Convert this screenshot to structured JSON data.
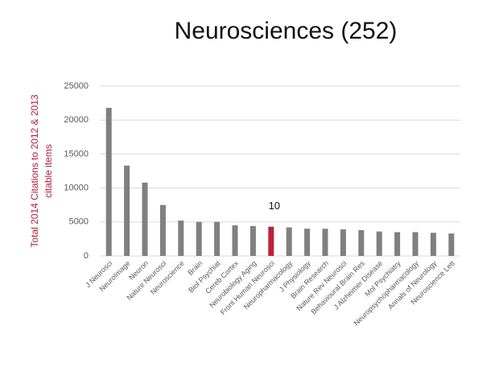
{
  "chart_data": {
    "type": "bar",
    "title": "Neurosciences (252)",
    "ylabel": [
      "Total 2014 Citations to 2012 & 2013",
      "citable items"
    ],
    "categories": [
      "J Neurosci",
      "NeuroImage",
      "Neuron",
      "Nature Neurosci",
      "Neuroscience",
      "Brain",
      "Biol Psychiat",
      "Cereb Cortex",
      "Neurobiology Aging",
      "Front Human Neurosci",
      "Neuropharmacology",
      "J Physiology",
      "Brain Research",
      "Nature Rev Neurosci",
      "Behavioural Brain Res",
      "J Alzheimer Disease",
      "Mol Psychiatry",
      "Neuropsychopharmacology",
      "Annals of Neurology",
      "Neuroscience Lett"
    ],
    "values": [
      21800,
      13300,
      10800,
      7500,
      5200,
      5000,
      5000,
      4500,
      4400,
      4300,
      4200,
      4000,
      4000,
      3900,
      3800,
      3600,
      3500,
      3500,
      3400,
      3300
    ],
    "colors": [
      "#808080",
      "#808080",
      "#808080",
      "#808080",
      "#808080",
      "#808080",
      "#808080",
      "#808080",
      "#808080",
      "#c0203a",
      "#808080",
      "#808080",
      "#808080",
      "#808080",
      "#808080",
      "#808080",
      "#808080",
      "#808080",
      "#808080",
      "#808080"
    ],
    "annotations": [
      {
        "text": "10",
        "category": "Front Human Neurosci"
      }
    ],
    "ylabel_color": "#b0203a",
    "ylim": [
      0,
      25000
    ],
    "yticks": [
      0,
      5000,
      10000,
      15000,
      20000,
      25000
    ],
    "grid": true
  }
}
